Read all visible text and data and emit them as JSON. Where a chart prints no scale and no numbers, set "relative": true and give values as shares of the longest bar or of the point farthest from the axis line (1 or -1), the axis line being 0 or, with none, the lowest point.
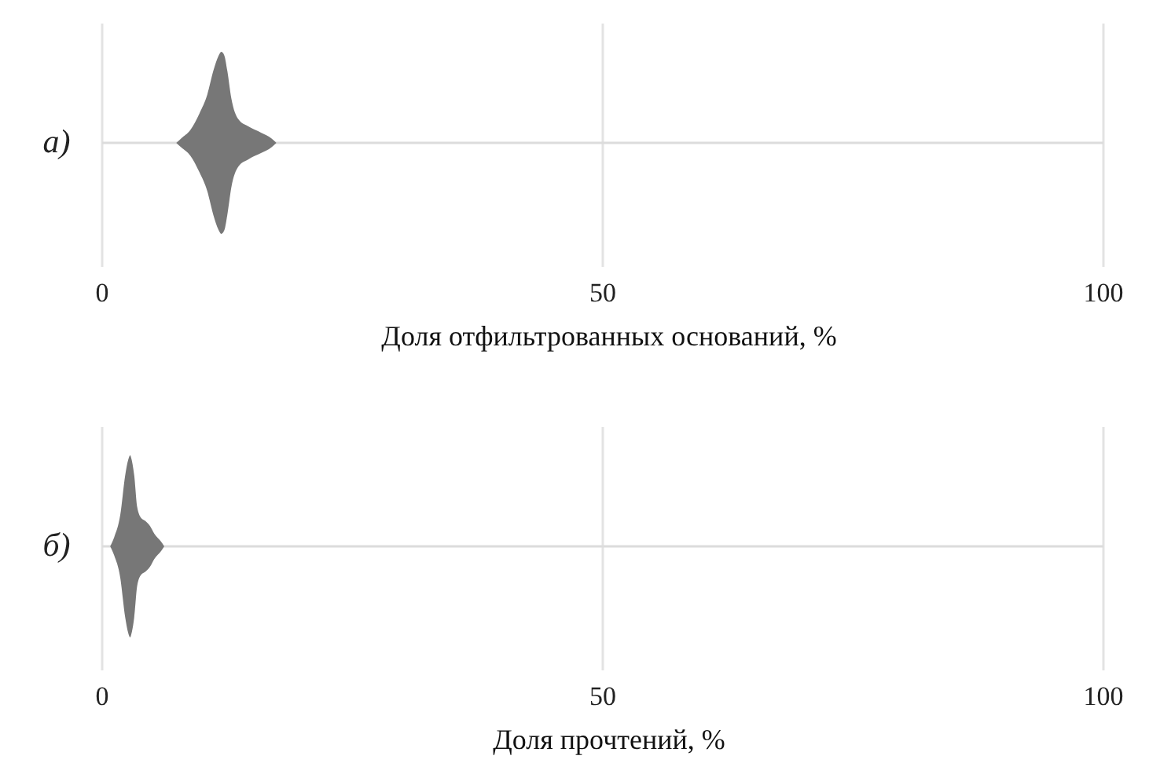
{
  "chart_data": [
    {
      "type": "area",
      "relative": true,
      "ylabel": "а)",
      "xlabel": "Доля отфильтрованных оснований, %",
      "xlim": [
        0,
        100
      ],
      "xticks": [
        0,
        50,
        100
      ],
      "grid": "x",
      "series": [
        {
          "color": "#777777",
          "x": [
            7.4,
            7.9,
            8.8,
            9.7,
            10.5,
            11.1,
            11.6,
            11.9,
            12.2,
            12.5,
            12.9,
            13.6,
            14.6,
            15.9,
            16.9,
            17.4
          ],
          "values": [
            0,
            0.05,
            0.14,
            0.32,
            0.53,
            0.79,
            0.95,
            1,
            0.96,
            0.79,
            0.49,
            0.26,
            0.18,
            0.11,
            0.05,
            0
          ]
        }
      ]
    },
    {
      "type": "area",
      "relative": true,
      "ylabel": "б)",
      "xlabel": "Доля прочтений, %",
      "xlim": [
        0,
        100
      ],
      "xticks": [
        0,
        50,
        100
      ],
      "grid": "x",
      "series": [
        {
          "color": "#777777",
          "x": [
            0.8,
            1.2,
            1.8,
            2.3,
            2.6,
            2.8,
            2.9,
            3.2,
            3.5,
            3.9,
            4.3,
            4.8,
            5.2,
            5.9,
            6.2
          ],
          "values": [
            0,
            0.1,
            0.34,
            0.78,
            0.95,
            1,
            0.97,
            0.78,
            0.43,
            0.31,
            0.28,
            0.22,
            0.14,
            0.05,
            0
          ]
        }
      ]
    }
  ]
}
